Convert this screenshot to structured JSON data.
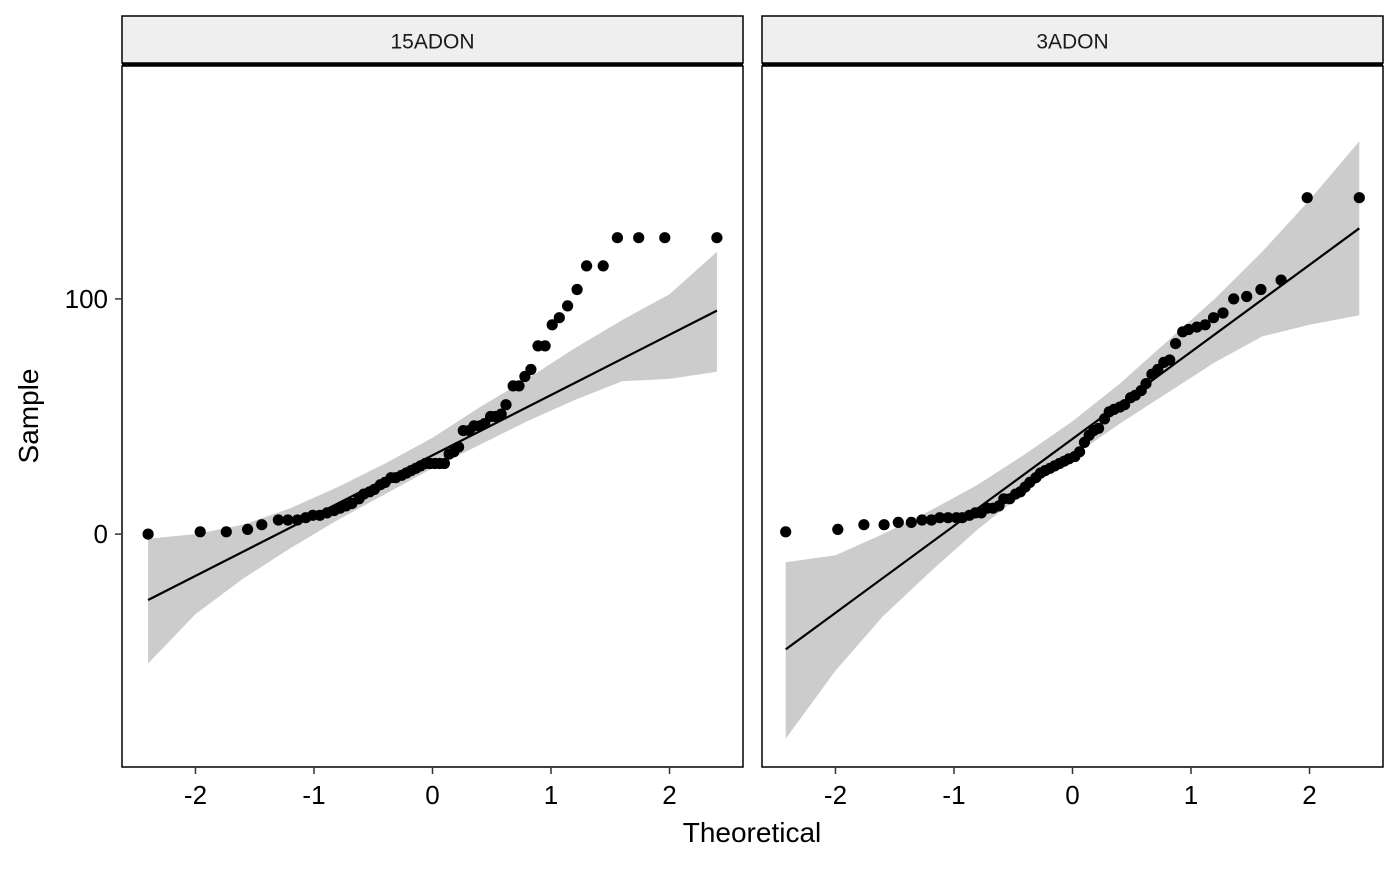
{
  "chart_data": {
    "type": "scatter",
    "subtype": "qq-plot",
    "xlabel": "Theoretical",
    "ylabel": "Sample",
    "xlim": [
      -2.62,
      2.62
    ],
    "ylim": [
      -99,
      199
    ],
    "x_ticks": [
      -2,
      -1,
      0,
      1,
      2
    ],
    "x_tick_labels": [
      "-2",
      "-1",
      "0",
      "1",
      "2"
    ],
    "y_ticks": [
      0,
      100
    ],
    "y_tick_labels": [
      "0",
      "100"
    ],
    "grid": false,
    "colors": {
      "points": "#000000",
      "line": "#000000",
      "band": "#cccccc",
      "strip": "#efefef",
      "frame": "#000000"
    },
    "panels": [
      {
        "label": "15ADON",
        "line": {
          "x": [
            -2.4,
            2.4
          ],
          "y": [
            -28,
            95
          ]
        },
        "band": {
          "x": [
            -2.4,
            -2.0,
            -1.6,
            -1.2,
            -0.8,
            -0.4,
            0.0,
            0.4,
            0.8,
            1.2,
            1.6,
            2.0,
            2.4
          ],
          "upper": [
            -2,
            0,
            4,
            11,
            20,
            30,
            41,
            54,
            66,
            79,
            91,
            102,
            120
          ],
          "lower": [
            -55,
            -34,
            -19,
            -6,
            6,
            17,
            28,
            38,
            48,
            57,
            65,
            66,
            69
          ]
        },
        "points": {
          "x": [
            -2.4,
            -1.96,
            -1.74,
            -1.56,
            -1.44,
            -1.3,
            -1.22,
            -1.14,
            -1.07,
            -1.01,
            -0.95,
            -0.89,
            -0.83,
            -0.78,
            -0.73,
            -0.68,
            -0.62,
            -0.58,
            -0.53,
            -0.49,
            -0.44,
            -0.4,
            -0.35,
            -0.31,
            -0.26,
            -0.22,
            -0.18,
            -0.14,
            -0.1,
            -0.06,
            -0.02,
            0.02,
            0.06,
            0.1,
            0.14,
            0.18,
            0.22,
            0.26,
            0.31,
            0.35,
            0.4,
            0.44,
            0.49,
            0.53,
            0.58,
            0.62,
            0.68,
            0.73,
            0.78,
            0.83,
            0.89,
            0.95,
            1.01,
            1.07,
            1.14,
            1.22,
            1.3,
            1.44,
            1.56,
            1.74,
            1.96,
            2.4
          ],
          "y": [
            0,
            1,
            1,
            2,
            4,
            6,
            6,
            6,
            7,
            8,
            8,
            9,
            10,
            11,
            12,
            13,
            15,
            17,
            18,
            19,
            21,
            22,
            24,
            24,
            25,
            26,
            27,
            28,
            29,
            30,
            30,
            30,
            30,
            30,
            34,
            35,
            37,
            44,
            44,
            46,
            46,
            47,
            50,
            50,
            51,
            55,
            63,
            63,
            67,
            70,
            80,
            80,
            89,
            92,
            97,
            104,
            114,
            114,
            126,
            126,
            126,
            126
          ]
        }
      },
      {
        "label": "3ADON",
        "line": {
          "x": [
            -2.42,
            2.42
          ],
          "y": [
            -49,
            130
          ]
        },
        "band": {
          "x": [
            -2.42,
            -2.0,
            -1.6,
            -1.2,
            -0.8,
            -0.4,
            0.0,
            0.4,
            0.8,
            1.2,
            1.6,
            2.0,
            2.42
          ],
          "upper": [
            -12,
            -9,
            0,
            10,
            21,
            34,
            48,
            64,
            82,
            100,
            120,
            142,
            167
          ],
          "lower": [
            -87,
            -58,
            -35,
            -16,
            2,
            18,
            33,
            47,
            60,
            73,
            84,
            89,
            93
          ]
        },
        "points": {
          "x": [
            -2.42,
            -1.98,
            -1.76,
            -1.59,
            -1.47,
            -1.36,
            -1.27,
            -1.19,
            -1.12,
            -1.05,
            -0.98,
            -0.93,
            -0.87,
            -0.82,
            -0.77,
            -0.72,
            -0.67,
            -0.62,
            -0.58,
            -0.53,
            -0.48,
            -0.44,
            -0.4,
            -0.36,
            -0.31,
            -0.27,
            -0.23,
            -0.19,
            -0.15,
            -0.11,
            -0.07,
            -0.03,
            0.02,
            0.06,
            0.1,
            0.14,
            0.18,
            0.22,
            0.27,
            0.31,
            0.35,
            0.4,
            0.44,
            0.49,
            0.53,
            0.58,
            0.62,
            0.67,
            0.72,
            0.77,
            0.82,
            0.87,
            0.93,
            0.98,
            1.05,
            1.12,
            1.19,
            1.27,
            1.36,
            1.47,
            1.59,
            1.76,
            1.98,
            2.42
          ],
          "y": [
            1,
            2,
            4,
            4,
            5,
            5,
            6,
            6,
            7,
            7,
            7,
            7,
            8,
            9,
            9,
            11,
            11,
            12,
            15,
            15,
            17,
            18,
            20,
            22,
            24,
            26,
            27,
            28,
            29,
            30,
            31,
            32,
            33,
            35,
            39,
            42,
            44,
            45,
            49,
            52,
            53,
            54,
            55,
            58,
            59,
            61,
            64,
            68,
            70,
            73,
            74,
            81,
            86,
            87,
            88,
            89,
            92,
            94,
            100,
            101,
            104,
            108,
            143,
            143
          ]
        }
      }
    ]
  }
}
